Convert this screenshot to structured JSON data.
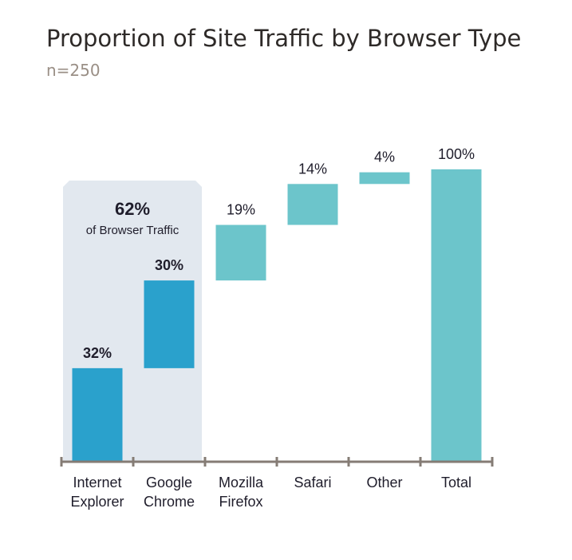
{
  "colors": {
    "highlight_bar": "#2aa1cc",
    "other_bar": "#6cc5cb",
    "highlight_region": "#e2e8ef",
    "axis": "#857c75"
  },
  "chart_data": {
    "type": "bar",
    "subtype": "waterfall",
    "title": "Proportion of Site Traffic by Browser Type",
    "subtitle": "n=250",
    "xlabel": "",
    "ylabel": "",
    "ylim": [
      0,
      100
    ],
    "grid": false,
    "legend": "none",
    "categories": [
      [
        "Internet",
        "Explorer"
      ],
      [
        "Google",
        "Chrome"
      ],
      [
        "Mozilla",
        "Firefox"
      ],
      [
        "Safari"
      ],
      [
        "Other"
      ],
      [
        "Total"
      ]
    ],
    "values": [
      32,
      30,
      19,
      14,
      4,
      100
    ],
    "labels": [
      "32%",
      "30%",
      "19%",
      "14%",
      "4%",
      "100%"
    ],
    "highlighted": [
      true,
      true,
      false,
      false,
      false,
      false
    ],
    "annotation": {
      "value": "62%",
      "text": "of Browser Traffic"
    }
  }
}
